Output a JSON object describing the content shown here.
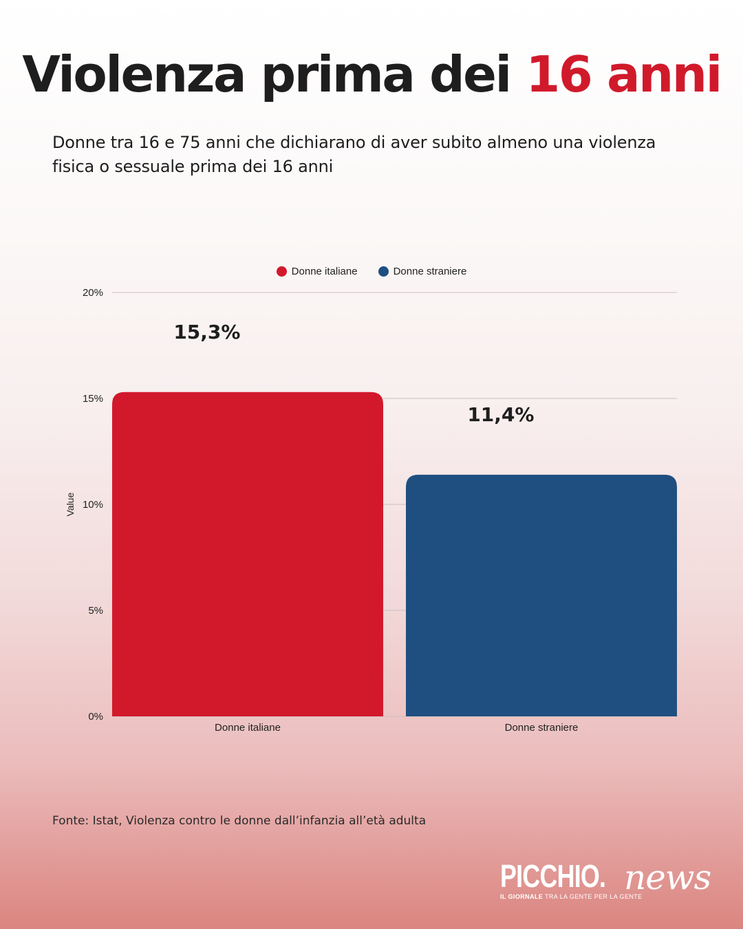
{
  "header": {
    "title_main": "Violenza prima dei",
    "title_highlight": "16 anni",
    "subtitle": "Donne tra 16 e 75 anni che dichiarano di aver subito almeno una violenza fisica o sessuale prima dei 16 anni"
  },
  "legend": [
    {
      "label": "Donne italiane",
      "color": "#d2192c"
    },
    {
      "label": "Donne straniere",
      "color": "#1f4f80"
    }
  ],
  "chart_data": {
    "type": "bar",
    "categories": [
      "Donne italiane",
      "Donne straniere"
    ],
    "values": [
      15.3,
      11.4
    ],
    "data_labels": [
      "15,3%",
      "11,4%"
    ],
    "colors": [
      "#d2192c",
      "#1f4f80"
    ],
    "ylabel": "Value",
    "ylim": [
      0,
      20
    ],
    "yticks": [
      0,
      5,
      10,
      15,
      20
    ],
    "ytick_labels": [
      "0%",
      "5%",
      "10%",
      "15%",
      "20%"
    ],
    "grid": true,
    "legend_position": "top-center"
  },
  "source": "Fonte: Istat, Violenza contro le donne dall’infanzia all’età adulta",
  "logo": {
    "brand": "PICCHIO.",
    "brand_script": "news",
    "tagline_bold": "IL GIORNALE",
    "tagline_rest": "TRA LA GENTE PER LA GENTE"
  }
}
